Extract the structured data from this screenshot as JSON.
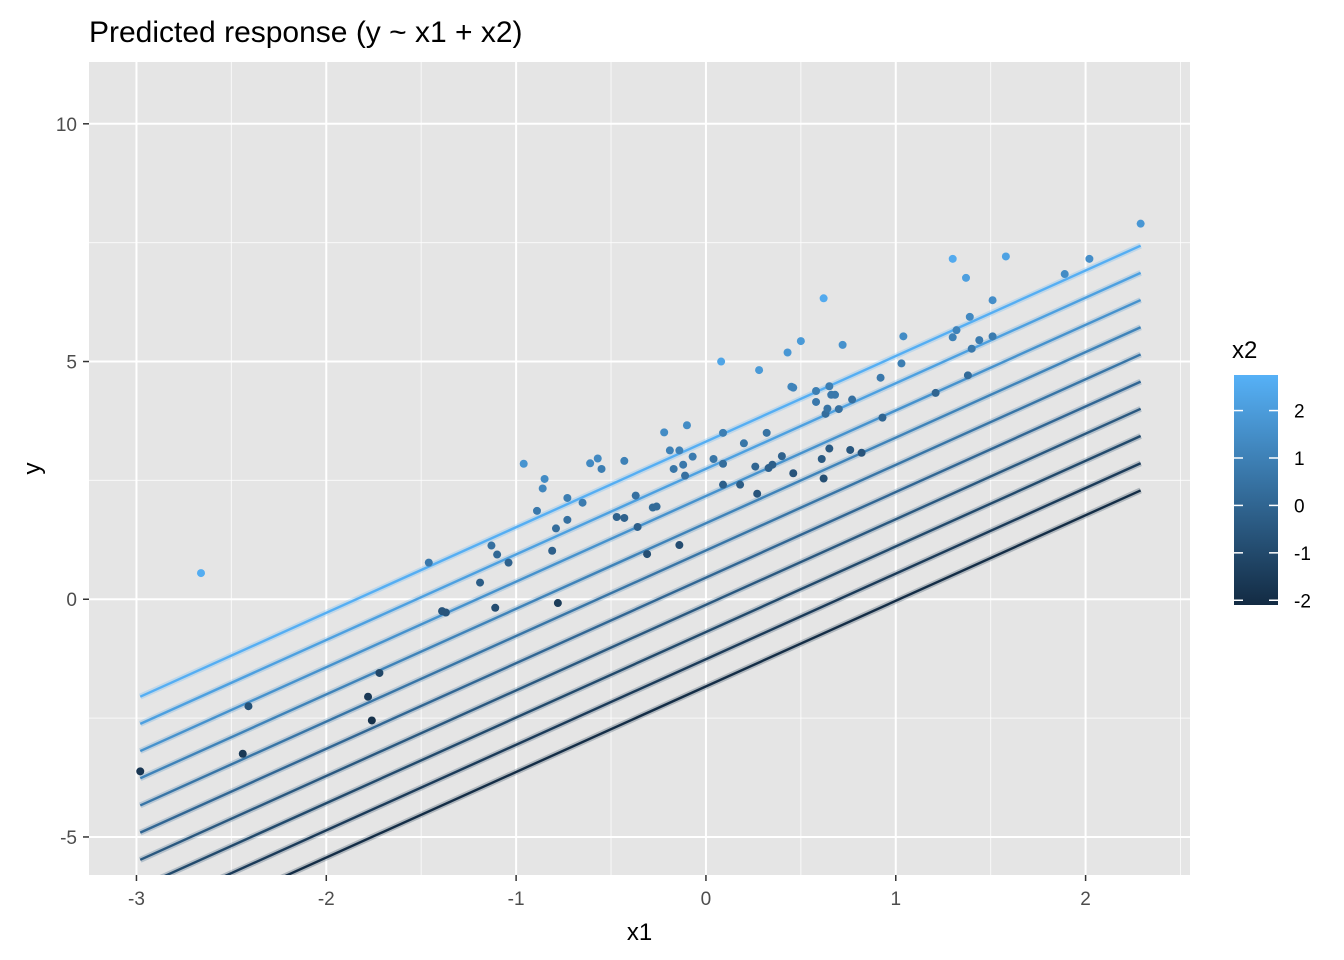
{
  "chart_data": {
    "type": "scatter",
    "title": "Predicted response (y ~ x1 + x2)",
    "xlabel": "x1",
    "ylabel": "y",
    "xlim": [
      -3.25,
      2.55
    ],
    "ylim": [
      -5.8,
      11.3
    ],
    "x_ticks": [
      -3,
      -2,
      -1,
      0,
      1,
      2
    ],
    "x_tick_labels": [
      "-3",
      "-2",
      "-1",
      "0",
      "1",
      "2"
    ],
    "y_ticks": [
      -5,
      0,
      5,
      10
    ],
    "y_tick_labels": [
      "-5",
      "0",
      "5",
      "10"
    ],
    "grid": true,
    "legend_position": "right",
    "legend": {
      "title": "x2",
      "type": "colorbar",
      "min": -2.1,
      "max": 2.75,
      "ticks": [
        2,
        1,
        0,
        -1,
        -2
      ],
      "tick_labels": [
        "2",
        "1",
        "0",
        "-1",
        "-2"
      ],
      "color_low": "#132b43",
      "color_high": "#56b1f7"
    },
    "colors": {
      "panel_background": "#e5e5e5",
      "grid": "#ffffff",
      "low": "#132b43",
      "high": "#56b1f7"
    },
    "fitted_lines": {
      "x_range": [
        -2.98,
        2.29
      ],
      "slope": 1.8,
      "intercept": 0.4,
      "x2_coefficient": 1.1,
      "x2_values": [
        -2.03,
        -1.51,
        -0.99,
        -0.47,
        0.05,
        0.57,
        1.09,
        1.61,
        2.13,
        2.65
      ]
    },
    "points": [
      {
        "x1": -2.98,
        "y": -3.62,
        "x2": -1.7
      },
      {
        "x1": -2.66,
        "y": 0.55,
        "x2": 2.6
      },
      {
        "x1": -2.44,
        "y": -3.25,
        "x2": -1.6
      },
      {
        "x1": -2.41,
        "y": -2.25,
        "x2": -0.7
      },
      {
        "x1": -1.78,
        "y": -2.05,
        "x2": -1.6
      },
      {
        "x1": -1.76,
        "y": -2.55,
        "x2": -1.9
      },
      {
        "x1": -1.72,
        "y": -1.55,
        "x2": -1.1
      },
      {
        "x1": -1.46,
        "y": 0.77,
        "x2": 0.7
      },
      {
        "x1": -1.39,
        "y": -0.25,
        "x2": -0.6
      },
      {
        "x1": -1.37,
        "y": -0.28,
        "x2": -0.6
      },
      {
        "x1": -1.19,
        "y": 0.35,
        "x2": -0.3
      },
      {
        "x1": -1.13,
        "y": 1.13,
        "x2": 0.4
      },
      {
        "x1": -1.11,
        "y": -0.18,
        "x2": -0.9
      },
      {
        "x1": -1.1,
        "y": 0.94,
        "x2": 0.1
      },
      {
        "x1": -1.04,
        "y": 0.77,
        "x2": -0.1
      },
      {
        "x1": -0.96,
        "y": 2.85,
        "x2": 1.7
      },
      {
        "x1": -0.89,
        "y": 1.86,
        "x2": 0.7
      },
      {
        "x1": -0.86,
        "y": 2.33,
        "x2": 1.2
      },
      {
        "x1": -0.85,
        "y": 2.53,
        "x2": 1.4
      },
      {
        "x1": -0.81,
        "y": 1.02,
        "x2": -0.2
      },
      {
        "x1": -0.79,
        "y": 1.49,
        "x2": 0.3
      },
      {
        "x1": -0.78,
        "y": -0.08,
        "x2": -1.5
      },
      {
        "x1": -0.73,
        "y": 1.67,
        "x2": 0.4
      },
      {
        "x1": -0.73,
        "y": 2.13,
        "x2": 0.9
      },
      {
        "x1": -0.65,
        "y": 2.03,
        "x2": 0.8
      },
      {
        "x1": -0.61,
        "y": 2.86,
        "x2": 1.3
      },
      {
        "x1": -0.57,
        "y": 2.96,
        "x2": 1.3
      },
      {
        "x1": -0.55,
        "y": 2.74,
        "x2": 0.9
      },
      {
        "x1": -0.47,
        "y": 1.73,
        "x2": -0.1
      },
      {
        "x1": -0.43,
        "y": 1.71,
        "x2": -0.1
      },
      {
        "x1": -0.43,
        "y": 2.91,
        "x2": 1.0
      },
      {
        "x1": -0.37,
        "y": 2.18,
        "x2": 0.4
      },
      {
        "x1": -0.36,
        "y": 1.52,
        "x2": -0.2
      },
      {
        "x1": -0.31,
        "y": 0.95,
        "x2": -0.8
      },
      {
        "x1": -0.28,
        "y": 1.93,
        "x2": 0.2
      },
      {
        "x1": -0.26,
        "y": 1.95,
        "x2": 0.2
      },
      {
        "x1": -0.22,
        "y": 3.51,
        "x2": 1.4
      },
      {
        "x1": -0.19,
        "y": 3.13,
        "x2": 1.0
      },
      {
        "x1": -0.17,
        "y": 2.74,
        "x2": 0.6
      },
      {
        "x1": -0.14,
        "y": 3.13,
        "x2": 1.0
      },
      {
        "x1": -0.14,
        "y": 1.14,
        "x2": -0.9
      },
      {
        "x1": -0.12,
        "y": 2.83,
        "x2": 0.7
      },
      {
        "x1": -0.11,
        "y": 2.6,
        "x2": 0.4
      },
      {
        "x1": -0.1,
        "y": 3.66,
        "x2": 1.4
      },
      {
        "x1": -0.07,
        "y": 3.0,
        "x2": 0.8
      },
      {
        "x1": 0.04,
        "y": 2.95,
        "x2": 0.6
      },
      {
        "x1": 0.08,
        "y": 5.0,
        "x2": 2.3
      },
      {
        "x1": 0.09,
        "y": 3.5,
        "x2": 0.9
      },
      {
        "x1": 0.09,
        "y": 2.41,
        "x2": -0.2
      },
      {
        "x1": 0.09,
        "y": 2.85,
        "x2": 0.3
      },
      {
        "x1": 0.18,
        "y": 2.41,
        "x2": -0.3
      },
      {
        "x1": 0.2,
        "y": 3.28,
        "x2": 0.6
      },
      {
        "x1": 0.26,
        "y": 2.79,
        "x2": 0.0
      },
      {
        "x1": 0.27,
        "y": 2.22,
        "x2": -0.6
      },
      {
        "x1": 0.28,
        "y": 4.82,
        "x2": 1.9
      },
      {
        "x1": 0.32,
        "y": 3.5,
        "x2": 0.5
      },
      {
        "x1": 0.33,
        "y": 2.76,
        "x2": -0.2
      },
      {
        "x1": 0.35,
        "y": 2.83,
        "x2": -0.2
      },
      {
        "x1": 0.4,
        "y": 3.01,
        "x2": -0.1
      },
      {
        "x1": 0.43,
        "y": 5.19,
        "x2": 1.8
      },
      {
        "x1": 0.45,
        "y": 4.47,
        "x2": 1.2
      },
      {
        "x1": 0.46,
        "y": 4.45,
        "x2": 1.1
      },
      {
        "x1": 0.46,
        "y": 2.65,
        "x2": -0.6
      },
      {
        "x1": 0.5,
        "y": 5.43,
        "x2": 1.9
      },
      {
        "x1": 0.58,
        "y": 4.38,
        "x2": 0.9
      },
      {
        "x1": 0.58,
        "y": 4.15,
        "x2": 0.7
      },
      {
        "x1": 0.61,
        "y": 2.95,
        "x2": -0.4
      },
      {
        "x1": 0.62,
        "y": 2.54,
        "x2": -0.8
      },
      {
        "x1": 0.62,
        "y": 6.33,
        "x2": 2.5
      },
      {
        "x1": 0.63,
        "y": 3.9,
        "x2": 0.3
      },
      {
        "x1": 0.64,
        "y": 4.01,
        "x2": 0.5
      },
      {
        "x1": 0.65,
        "y": 4.48,
        "x2": 0.9
      },
      {
        "x1": 0.65,
        "y": 3.17,
        "x2": -0.4
      },
      {
        "x1": 0.66,
        "y": 4.3,
        "x2": 0.7
      },
      {
        "x1": 0.68,
        "y": 4.3,
        "x2": 0.7
      },
      {
        "x1": 0.7,
        "y": 4.0,
        "x2": 0.4
      },
      {
        "x1": 0.72,
        "y": 5.35,
        "x2": 1.6
      },
      {
        "x1": 0.76,
        "y": 3.14,
        "x2": -0.5
      },
      {
        "x1": 0.77,
        "y": 4.2,
        "x2": 0.4
      },
      {
        "x1": 0.82,
        "y": 3.08,
        "x2": -0.6
      },
      {
        "x1": 0.92,
        "y": 4.66,
        "x2": 0.7
      },
      {
        "x1": 0.93,
        "y": 3.82,
        "x2": 0.0
      },
      {
        "x1": 1.03,
        "y": 4.96,
        "x2": 0.9
      },
      {
        "x1": 1.04,
        "y": 5.53,
        "x2": 1.4
      },
      {
        "x1": 1.21,
        "y": 4.34,
        "x2": 0.0
      },
      {
        "x1": 1.3,
        "y": 5.51,
        "x2": 1.0
      },
      {
        "x1": 1.3,
        "y": 7.16,
        "x2": 2.5
      },
      {
        "x1": 1.32,
        "y": 5.66,
        "x2": 1.1
      },
      {
        "x1": 1.37,
        "y": 6.76,
        "x2": 2.1
      },
      {
        "x1": 1.38,
        "y": 4.71,
        "x2": 0.2
      },
      {
        "x1": 1.39,
        "y": 5.94,
        "x2": 1.3
      },
      {
        "x1": 1.4,
        "y": 5.27,
        "x2": 0.7
      },
      {
        "x1": 1.44,
        "y": 5.45,
        "x2": 0.8
      },
      {
        "x1": 1.51,
        "y": 6.29,
        "x2": 1.5
      },
      {
        "x1": 1.51,
        "y": 5.53,
        "x2": 0.8
      },
      {
        "x1": 1.58,
        "y": 7.21,
        "x2": 2.2
      },
      {
        "x1": 1.89,
        "y": 6.84,
        "x2": 1.4
      },
      {
        "x1": 2.02,
        "y": 7.16,
        "x2": 1.5
      },
      {
        "x1": 2.29,
        "y": 7.9,
        "x2": 1.8
      }
    ]
  }
}
